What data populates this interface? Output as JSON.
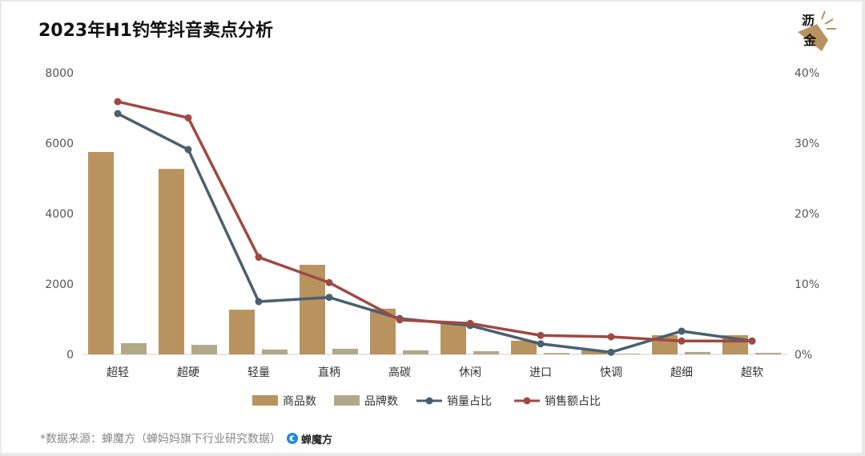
{
  "title": "2023年H1钓竿抖音卖点分析",
  "logo_text": "沥金",
  "footer": {
    "source": "*数据来源：蝉魔方（蝉妈妈旗下行业研究数据）",
    "brand": "蝉魔方"
  },
  "chart_data": {
    "type": "bar+line",
    "title": "2023年H1钓竿抖音卖点分析",
    "categories": [
      "超轻",
      "超硬",
      "轻量",
      "直柄",
      "高碳",
      "休闲",
      "进口",
      "快调",
      "超细",
      "超软"
    ],
    "y_left": {
      "range": [
        0,
        8000
      ],
      "ticks": [
        "0",
        "2000",
        "4000",
        "6000",
        "8000"
      ]
    },
    "y_right": {
      "range": [
        0,
        40
      ],
      "unit": "%",
      "ticks": [
        "0%",
        "10%",
        "20%",
        "30%",
        "40%"
      ]
    },
    "grid": false,
    "legend_position": "bottom",
    "series": [
      {
        "name": "商品数",
        "type": "bar",
        "axis": "left",
        "color": "#b8935f",
        "values": [
          5750,
          5270,
          1270,
          2545,
          1300,
          910,
          390,
          115,
          545,
          545
        ]
      },
      {
        "name": "品牌数",
        "type": "bar",
        "axis": "left",
        "color": "#b0a888",
        "values": [
          320,
          270,
          140,
          160,
          115,
          90,
          40,
          20,
          70,
          45
        ]
      },
      {
        "name": "销量占比",
        "type": "line",
        "axis": "right",
        "color": "#4a6070",
        "values": [
          34.2,
          29.1,
          7.5,
          8.1,
          5.1,
          4.1,
          1.5,
          0.3,
          3.3,
          1.9
        ]
      },
      {
        "name": "销售额占比",
        "type": "line",
        "axis": "right",
        "color": "#9e4a43",
        "values": [
          35.9,
          33.6,
          13.8,
          10.2,
          4.9,
          4.4,
          2.7,
          2.5,
          1.9,
          1.9
        ]
      }
    ]
  }
}
